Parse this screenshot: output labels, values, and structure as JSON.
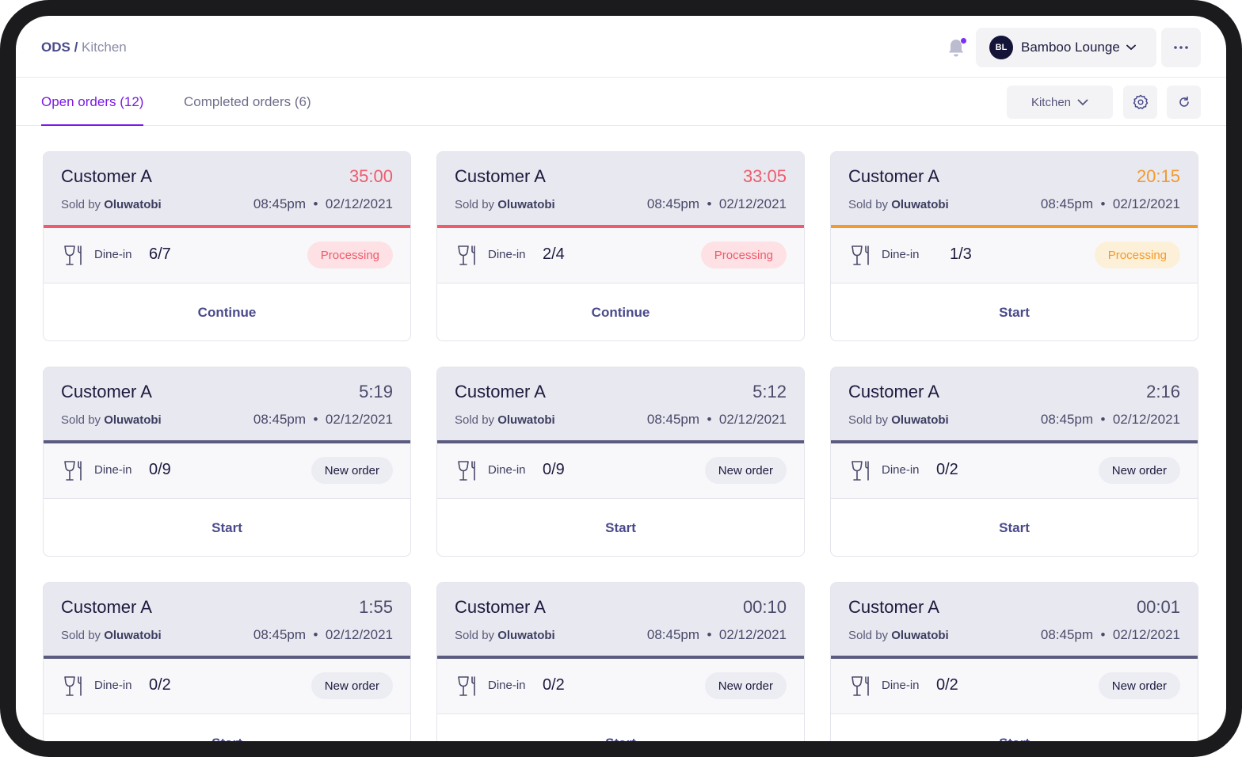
{
  "header": {
    "breadcrumb_root": "ODS",
    "breadcrumb_sep": "/",
    "breadcrumb_current": "Kitchen",
    "store": {
      "initials": "BL",
      "name": "Bamboo Lounge"
    }
  },
  "tabs": [
    {
      "label": "Open orders (12)",
      "active": true
    },
    {
      "label": "Completed orders (6)",
      "active": false
    }
  ],
  "filters": {
    "station": "Kitchen"
  },
  "colors": {
    "accent": "#7a1ae6",
    "overdue": "#ef5b6b",
    "warning": "#f39a2c",
    "normal": "#5b5b80"
  },
  "orders": [
    {
      "customer": "Customer A",
      "timer": "35:00",
      "sold_by_prefix": "Sold by",
      "seller": "Oluwatobi",
      "time": "08:45pm",
      "dot": "•",
      "date": "02/12/2021",
      "type": "Dine-in",
      "progress": "6/7",
      "status": "Processing",
      "action": "Continue"
    },
    {
      "customer": "Customer A",
      "timer": "33:05",
      "sold_by_prefix": "Sold by",
      "seller": "Oluwatobi",
      "time": "08:45pm",
      "dot": "•",
      "date": "02/12/2021",
      "type": "Dine-in",
      "progress": "2/4",
      "status": "Processing",
      "action": "Continue"
    },
    {
      "customer": "Customer A",
      "timer": "20:15",
      "sold_by_prefix": "Sold by",
      "seller": "Oluwatobi",
      "time": "08:45pm",
      "dot": "•",
      "date": "02/12/2021",
      "type": "Dine-in",
      "progress": "1/3",
      "status": "Processing",
      "action": "Start"
    },
    {
      "customer": "Customer A",
      "timer": "5:19",
      "sold_by_prefix": "Sold by",
      "seller": "Oluwatobi",
      "time": "08:45pm",
      "dot": "•",
      "date": "02/12/2021",
      "type": "Dine-in",
      "progress": "0/9",
      "status": "New order",
      "action": "Start"
    },
    {
      "customer": "Customer A",
      "timer": "5:12",
      "sold_by_prefix": "Sold by",
      "seller": "Oluwatobi",
      "time": "08:45pm",
      "dot": "•",
      "date": "02/12/2021",
      "type": "Dine-in",
      "progress": "0/9",
      "status": "New order",
      "action": "Start"
    },
    {
      "customer": "Customer A",
      "timer": "2:16",
      "sold_by_prefix": "Sold by",
      "seller": "Oluwatobi",
      "time": "08:45pm",
      "dot": "•",
      "date": "02/12/2021",
      "type": "Dine-in",
      "progress": "0/2",
      "status": "New order",
      "action": "Start"
    },
    {
      "customer": "Customer A",
      "timer": "1:55",
      "sold_by_prefix": "Sold by",
      "seller": "Oluwatobi",
      "time": "08:45pm",
      "dot": "•",
      "date": "02/12/2021",
      "type": "Dine-in",
      "progress": "0/2",
      "status": "New order",
      "action": "Start"
    },
    {
      "customer": "Customer A",
      "timer": "00:10",
      "sold_by_prefix": "Sold by",
      "seller": "Oluwatobi",
      "time": "08:45pm",
      "dot": "•",
      "date": "02/12/2021",
      "type": "Dine-in",
      "progress": "0/2",
      "status": "New order",
      "action": "Start"
    },
    {
      "customer": "Customer A",
      "timer": "00:01",
      "sold_by_prefix": "Sold by",
      "seller": "Oluwatobi",
      "time": "08:45pm",
      "dot": "•",
      "date": "02/12/2021",
      "type": "Dine-in",
      "progress": "0/2",
      "status": "New order",
      "action": "Start"
    }
  ]
}
